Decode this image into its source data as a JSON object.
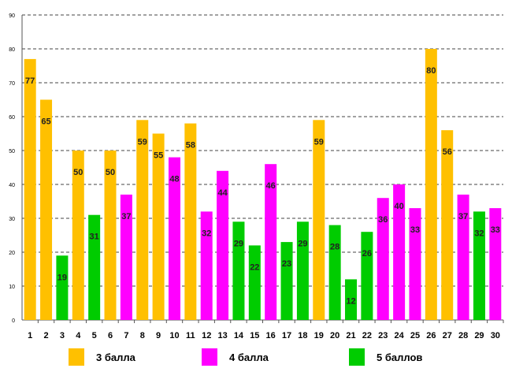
{
  "colors": {
    "g3": "#FFC000",
    "g4": "#FF00FF",
    "g5": "#00CC00"
  },
  "chart_data": {
    "type": "bar",
    "categories": [
      "1",
      "2",
      "3",
      "4",
      "5",
      "6",
      "7",
      "8",
      "9",
      "10",
      "11",
      "12",
      "13",
      "14",
      "15",
      "16",
      "17",
      "18",
      "19",
      "20",
      "21",
      "22",
      "23",
      "24",
      "25",
      "26",
      "27",
      "28",
      "29",
      "30"
    ],
    "values": [
      77,
      65,
      19,
      50,
      31,
      50,
      37,
      59,
      55,
      48,
      58,
      32,
      44,
      29,
      22,
      46,
      23,
      29,
      59,
      28,
      12,
      26,
      36,
      40,
      33,
      80,
      56,
      37,
      32,
      33
    ],
    "groups": [
      "g3",
      "g3",
      "g5",
      "g3",
      "g5",
      "g3",
      "g4",
      "g3",
      "g3",
      "g4",
      "g3",
      "g4",
      "g4",
      "g5",
      "g5",
      "g4",
      "g5",
      "g5",
      "g3",
      "g5",
      "g5",
      "g5",
      "g4",
      "g4",
      "g4",
      "g3",
      "g3",
      "g4",
      "g5",
      "g4"
    ],
    "ylim": [
      0,
      90
    ],
    "yticks": [
      0,
      10,
      20,
      30,
      40,
      50,
      60,
      70,
      80,
      90
    ],
    "grid": true,
    "legend": [
      {
        "group": "g3",
        "label": "3 балла"
      },
      {
        "group": "g4",
        "label": "4 балла"
      },
      {
        "group": "g5",
        "label": "5 баллов"
      }
    ]
  }
}
